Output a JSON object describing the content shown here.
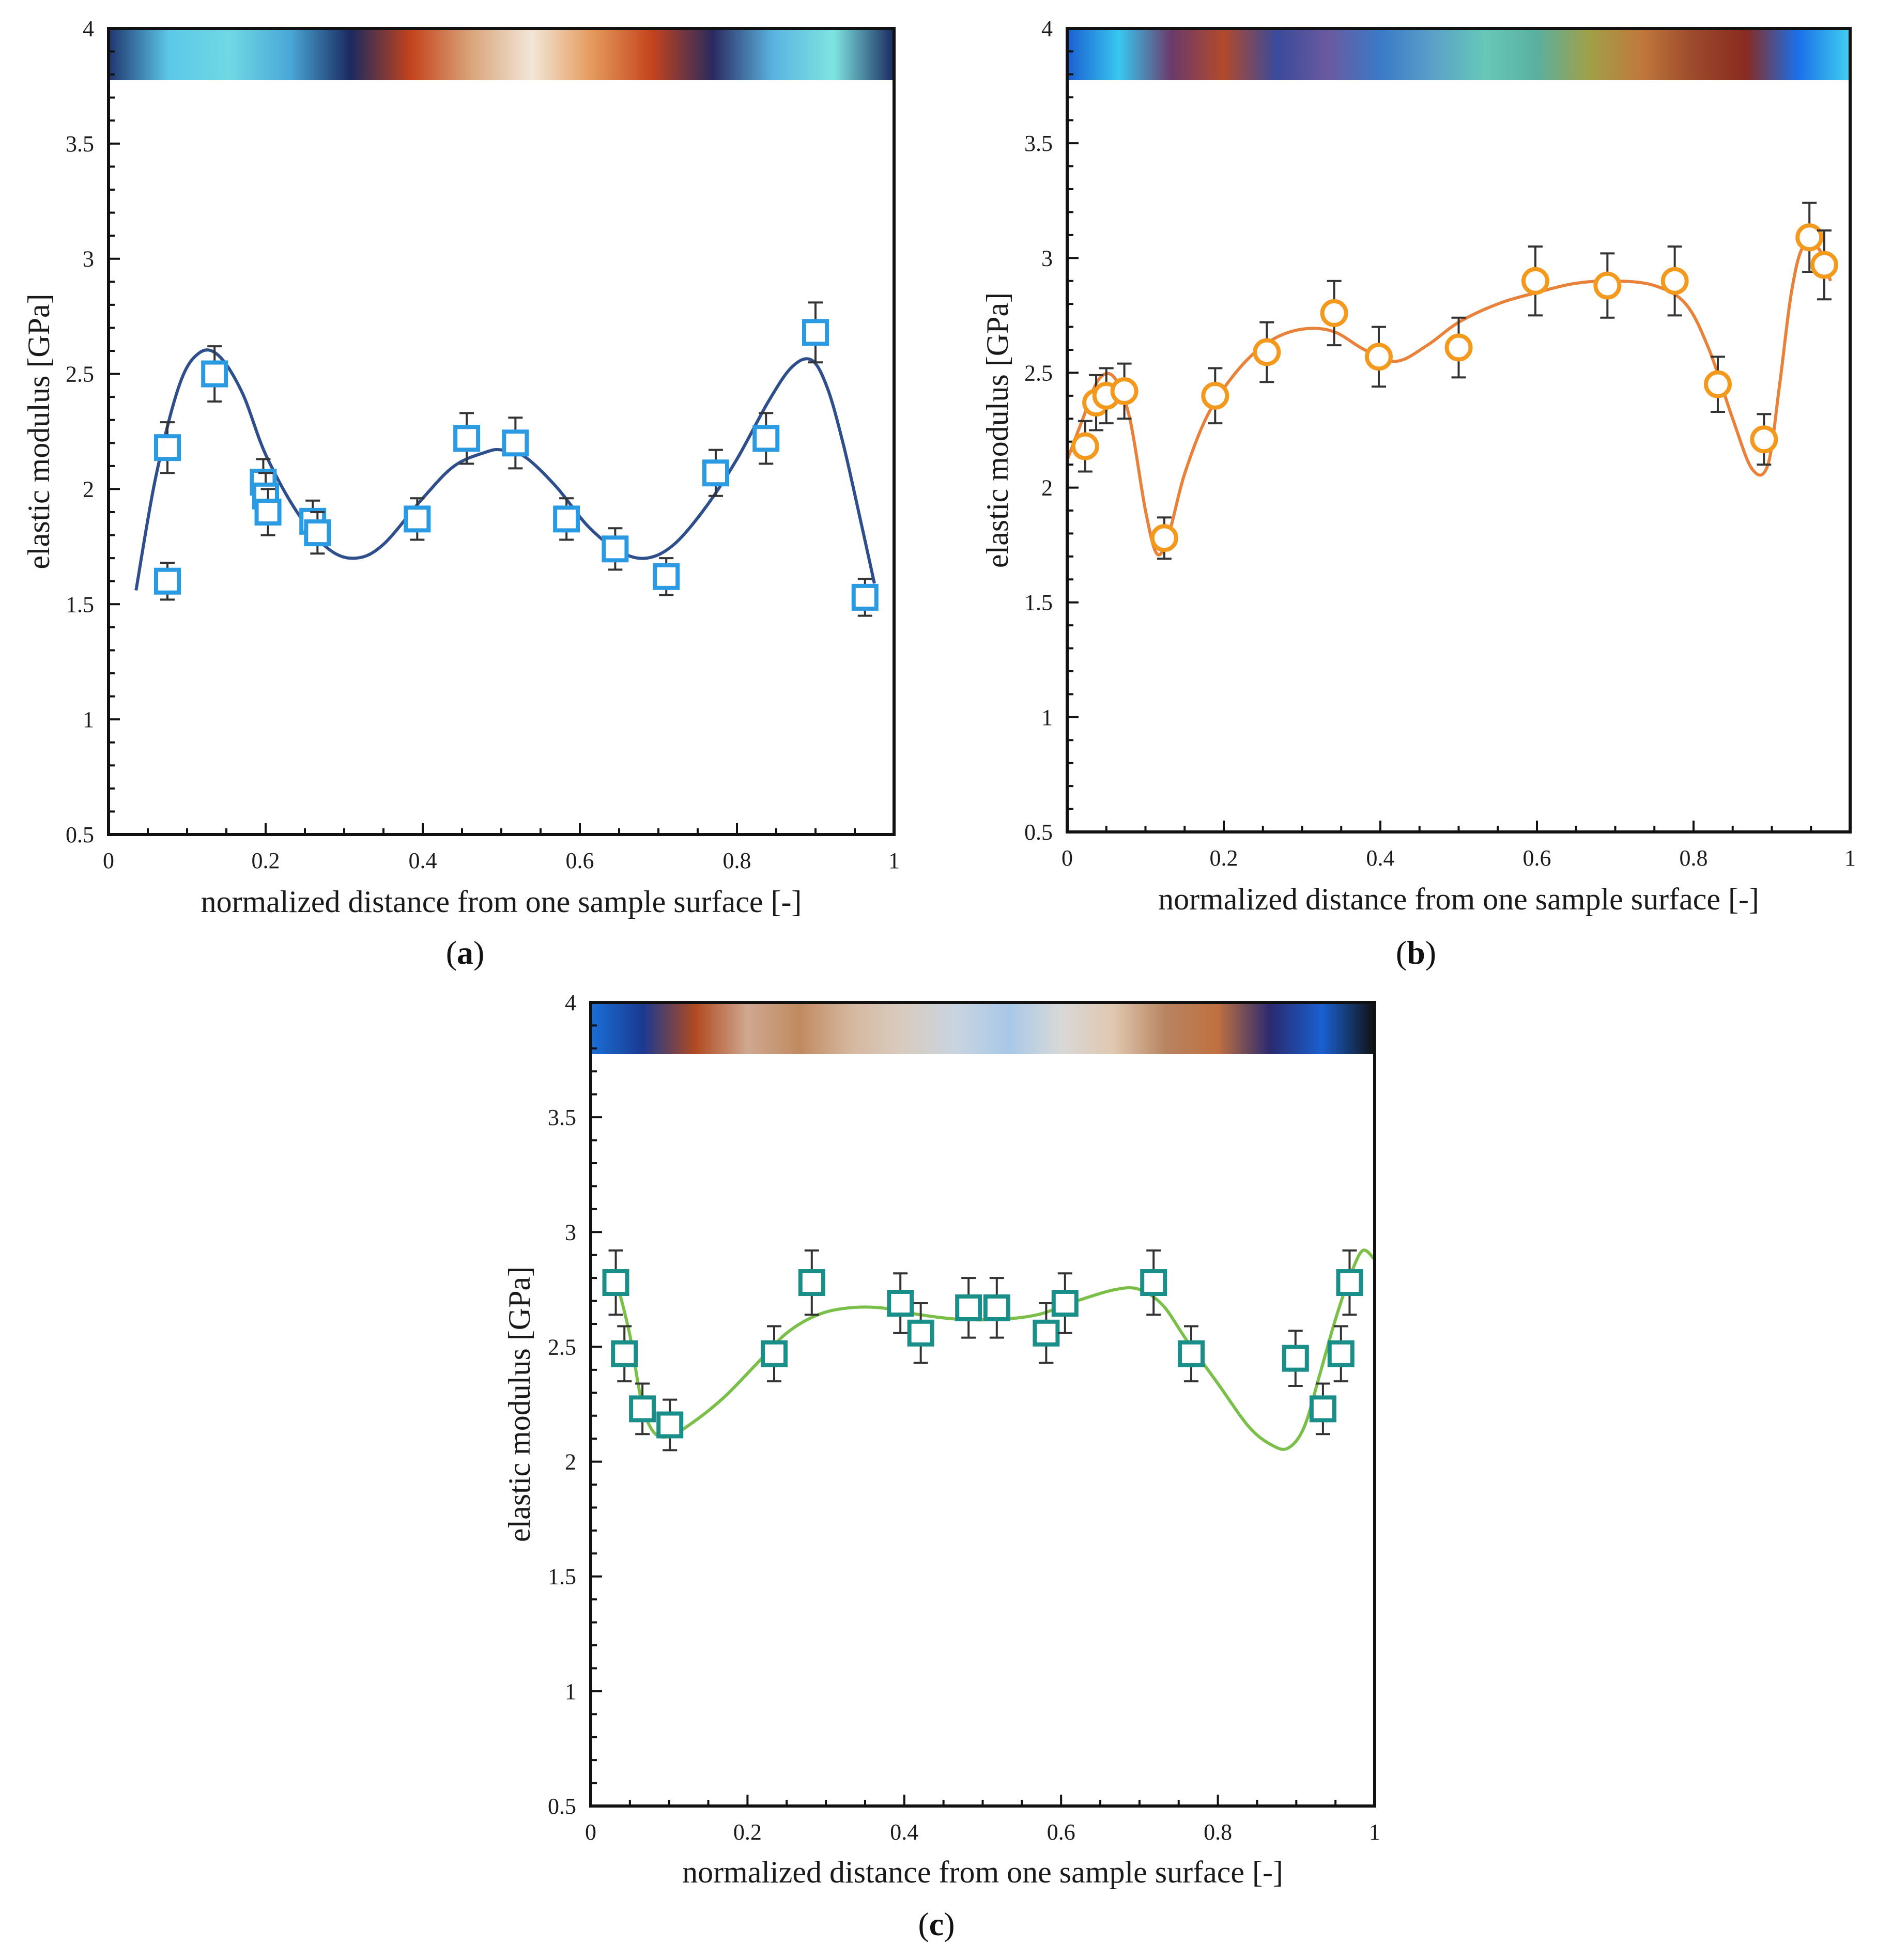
{
  "figure": {
    "panels": [
      {
        "id": "a",
        "letter": "a"
      },
      {
        "id": "b",
        "letter": "b"
      },
      {
        "id": "c",
        "letter": "c"
      }
    ]
  },
  "chart_data": [
    {
      "panel": "a",
      "type": "scatter",
      "marker": "square",
      "marker_color": "#2a9be3",
      "fit_color": "#2f4f8c",
      "band_colors": [
        "#1f3570",
        "#5cc8e8",
        "#6fd8e3",
        "#4aa8d8",
        "#1a2a60",
        "#c4431c",
        "#d9a47a",
        "#f2e6d8",
        "#e59a5c",
        "#c4431c",
        "#2a2a60",
        "#5ab4e0",
        "#7ee4e0",
        "#1a2a60"
      ],
      "xlabel": "normalized distance from one sample surface [-]",
      "ylabel": "elastic modulus [GPa]",
      "xlim": [
        0,
        1
      ],
      "ylim": [
        0.5,
        4
      ],
      "xticks": [
        "0",
        "0.2",
        "0.4",
        "0.6",
        "0.8",
        "1"
      ],
      "yticks": [
        "0.5",
        "1",
        "1.5",
        "2",
        "2.5",
        "3",
        "3.5",
        "4"
      ],
      "points": [
        {
          "x": 0.075,
          "y": 2.18,
          "err": 0.11
        },
        {
          "x": 0.075,
          "y": 1.6,
          "err": 0.08
        },
        {
          "x": 0.135,
          "y": 2.5,
          "err": 0.12
        },
        {
          "x": 0.197,
          "y": 2.03,
          "err": 0.1
        },
        {
          "x": 0.2,
          "y": 1.97,
          "err": 0.1
        },
        {
          "x": 0.203,
          "y": 1.9,
          "err": 0.1
        },
        {
          "x": 0.26,
          "y": 1.86,
          "err": 0.09
        },
        {
          "x": 0.266,
          "y": 1.81,
          "err": 0.09
        },
        {
          "x": 0.393,
          "y": 1.87,
          "err": 0.09
        },
        {
          "x": 0.456,
          "y": 2.22,
          "err": 0.11
        },
        {
          "x": 0.518,
          "y": 2.2,
          "err": 0.11
        },
        {
          "x": 0.583,
          "y": 1.87,
          "err": 0.09
        },
        {
          "x": 0.645,
          "y": 1.74,
          "err": 0.09
        },
        {
          "x": 0.71,
          "y": 1.62,
          "err": 0.08
        },
        {
          "x": 0.773,
          "y": 2.07,
          "err": 0.1
        },
        {
          "x": 0.837,
          "y": 2.22,
          "err": 0.11
        },
        {
          "x": 0.9,
          "y": 2.68,
          "err": 0.13
        },
        {
          "x": 0.963,
          "y": 1.53,
          "err": 0.08
        }
      ],
      "fit_curve": {
        "x": [
          0.035,
          0.06,
          0.09,
          0.115,
          0.14,
          0.17,
          0.2,
          0.24,
          0.28,
          0.315,
          0.35,
          0.4,
          0.44,
          0.48,
          0.5,
          0.53,
          0.57,
          0.61,
          0.65,
          0.685,
          0.72,
          0.76,
          0.8,
          0.84,
          0.87,
          0.895,
          0.915,
          0.935,
          0.955,
          0.975
        ],
        "y": [
          1.56,
          2.05,
          2.45,
          2.59,
          2.58,
          2.42,
          2.15,
          1.9,
          1.74,
          1.7,
          1.76,
          1.96,
          2.1,
          2.16,
          2.17,
          2.14,
          2.01,
          1.84,
          1.73,
          1.7,
          1.76,
          1.92,
          2.13,
          2.38,
          2.53,
          2.56,
          2.44,
          2.2,
          1.9,
          1.59
        ]
      }
    },
    {
      "panel": "b",
      "type": "scatter",
      "marker": "circle",
      "marker_color": "#f39a1e",
      "fit_color": "#e8823a",
      "band_colors": [
        "#1a5fd0",
        "#38c8f0",
        "#6b3a6a",
        "#b24a2c",
        "#3a4a9a",
        "#6a5aa0",
        "#3a7ac8",
        "#5aa0c8",
        "#66c8b8",
        "#5ab0a0",
        "#a0a048",
        "#c0783c",
        "#9c4a2c",
        "#8a2a20",
        "#1a70e8",
        "#40d0f0"
      ],
      "xlabel": "normalized distance from one sample surface [-]",
      "ylabel": "elastic modulus [GPa]",
      "xlim": [
        0,
        1
      ],
      "ylim": [
        0.5,
        4
      ],
      "xticks": [
        "0",
        "0.2",
        "0.4",
        "0.6",
        "0.8",
        "1"
      ],
      "yticks": [
        "0.5",
        "1",
        "1.5",
        "2",
        "2.5",
        "3",
        "3.5",
        "4"
      ],
      "points": [
        {
          "x": 0.023,
          "y": 2.18,
          "err": 0.11
        },
        {
          "x": 0.037,
          "y": 2.37,
          "err": 0.12
        },
        {
          "x": 0.05,
          "y": 2.4,
          "err": 0.12
        },
        {
          "x": 0.073,
          "y": 2.42,
          "err": 0.12
        },
        {
          "x": 0.124,
          "y": 1.78,
          "err": 0.09
        },
        {
          "x": 0.189,
          "y": 2.4,
          "err": 0.12
        },
        {
          "x": 0.255,
          "y": 2.59,
          "err": 0.13
        },
        {
          "x": 0.341,
          "y": 2.76,
          "err": 0.14
        },
        {
          "x": 0.398,
          "y": 2.57,
          "err": 0.13
        },
        {
          "x": 0.5,
          "y": 2.61,
          "err": 0.13
        },
        {
          "x": 0.598,
          "y": 2.9,
          "err": 0.15
        },
        {
          "x": 0.69,
          "y": 2.88,
          "err": 0.14
        },
        {
          "x": 0.776,
          "y": 2.9,
          "err": 0.15
        },
        {
          "x": 0.831,
          "y": 2.45,
          "err": 0.12
        },
        {
          "x": 0.89,
          "y": 2.21,
          "err": 0.11
        },
        {
          "x": 0.948,
          "y": 3.09,
          "err": 0.15
        },
        {
          "x": 0.967,
          "y": 2.97,
          "err": 0.15
        }
      ],
      "fit_curve": {
        "x": [
          0.0,
          0.02,
          0.04,
          0.06,
          0.08,
          0.1,
          0.115,
          0.13,
          0.15,
          0.18,
          0.22,
          0.26,
          0.3,
          0.34,
          0.38,
          0.42,
          0.46,
          0.5,
          0.55,
          0.6,
          0.65,
          0.7,
          0.75,
          0.79,
          0.82,
          0.85,
          0.875,
          0.895,
          0.91,
          0.925,
          0.94,
          0.96,
          0.975
        ],
        "y": [
          2.12,
          2.3,
          2.47,
          2.48,
          2.3,
          1.9,
          1.71,
          1.8,
          2.06,
          2.32,
          2.52,
          2.64,
          2.69,
          2.68,
          2.6,
          2.55,
          2.62,
          2.72,
          2.8,
          2.85,
          2.89,
          2.9,
          2.88,
          2.8,
          2.6,
          2.3,
          2.08,
          2.1,
          2.45,
          2.85,
          3.05,
          3.04,
          2.9
        ]
      }
    },
    {
      "panel": "c",
      "type": "scatter",
      "marker": "square",
      "marker_color": "#1a8f8a",
      "fit_color": "#7bbf4a",
      "band_colors": [
        "#1a6fd8",
        "#1a3a90",
        "#b04a20",
        "#cfa890",
        "#c08a60",
        "#d6b8a0",
        "#d8ccc0",
        "#c8d4e0",
        "#a8c8e8",
        "#d8d8d8",
        "#e0c8b0",
        "#b88460",
        "#c07040",
        "#2a2a70",
        "#1a60d0",
        "#111111"
      ],
      "xlabel": "normalized distance from one sample surface [-]",
      "ylabel": "elastic modulus [GPa]",
      "xlim": [
        0,
        1
      ],
      "ylim": [
        0.5,
        4
      ],
      "xticks": [
        "0",
        "0.2",
        "0.4",
        "0.6",
        "0.8",
        "1"
      ],
      "yticks": [
        "0.5",
        "1",
        "1.5",
        "2",
        "2.5",
        "3",
        "3.5",
        "4"
      ],
      "points": [
        {
          "x": 0.032,
          "y": 2.78,
          "err": 0.14
        },
        {
          "x": 0.043,
          "y": 2.47,
          "err": 0.12
        },
        {
          "x": 0.066,
          "y": 2.23,
          "err": 0.11
        },
        {
          "x": 0.101,
          "y": 2.16,
          "err": 0.11
        },
        {
          "x": 0.234,
          "y": 2.47,
          "err": 0.12
        },
        {
          "x": 0.282,
          "y": 2.78,
          "err": 0.14
        },
        {
          "x": 0.395,
          "y": 2.69,
          "err": 0.13
        },
        {
          "x": 0.421,
          "y": 2.56,
          "err": 0.13
        },
        {
          "x": 0.482,
          "y": 2.67,
          "err": 0.13
        },
        {
          "x": 0.518,
          "y": 2.67,
          "err": 0.13
        },
        {
          "x": 0.581,
          "y": 2.56,
          "err": 0.13
        },
        {
          "x": 0.605,
          "y": 2.69,
          "err": 0.13
        },
        {
          "x": 0.718,
          "y": 2.78,
          "err": 0.14
        },
        {
          "x": 0.766,
          "y": 2.47,
          "err": 0.12
        },
        {
          "x": 0.899,
          "y": 2.45,
          "err": 0.12
        },
        {
          "x": 0.934,
          "y": 2.23,
          "err": 0.11
        },
        {
          "x": 0.957,
          "y": 2.47,
          "err": 0.12
        },
        {
          "x": 0.968,
          "y": 2.78,
          "err": 0.14
        }
      ],
      "fit_curve": {
        "x": [
          0.035,
          0.05,
          0.065,
          0.08,
          0.1,
          0.13,
          0.17,
          0.21,
          0.25,
          0.29,
          0.33,
          0.37,
          0.42,
          0.47,
          0.52,
          0.57,
          0.62,
          0.67,
          0.7,
          0.73,
          0.76,
          0.8,
          0.84,
          0.87,
          0.89,
          0.91,
          0.93,
          0.95,
          0.97,
          0.985,
          1.0
        ],
        "y": [
          2.76,
          2.55,
          2.26,
          2.13,
          2.11,
          2.17,
          2.28,
          2.42,
          2.56,
          2.64,
          2.67,
          2.67,
          2.64,
          2.62,
          2.62,
          2.64,
          2.7,
          2.75,
          2.75,
          2.68,
          2.53,
          2.34,
          2.15,
          2.07,
          2.06,
          2.15,
          2.38,
          2.62,
          2.82,
          2.92,
          2.88
        ]
      }
    }
  ]
}
